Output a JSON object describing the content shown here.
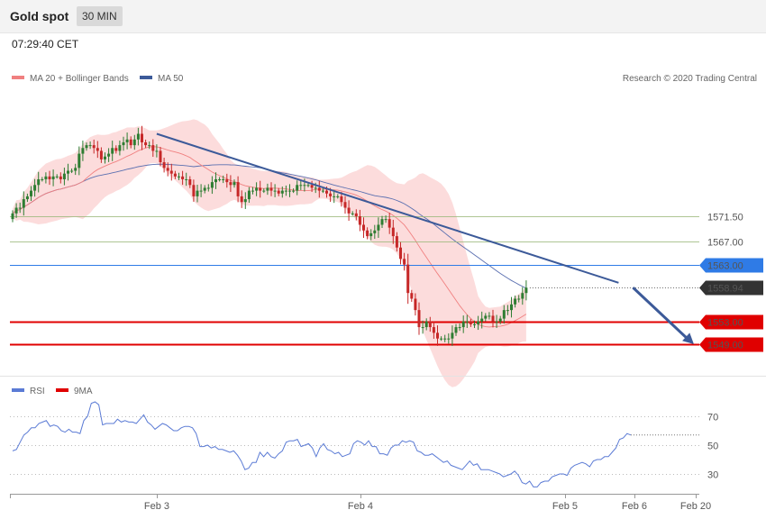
{
  "header": {
    "title": "Gold spot",
    "timeframe": "30 MIN"
  },
  "timestamp": "07:29:40 CET",
  "legend": {
    "ma20_bb": "MA 20 + Bollinger Bands",
    "ma50": "MA 50",
    "rsi": "RSI",
    "ma9": "9MA"
  },
  "credit": "Research © 2020 Trading Central",
  "colors": {
    "candle_up": "#2e7d32",
    "candle_down": "#c62828",
    "bollinger_fill": "#fbd0d0",
    "ma20": "#f08080",
    "ma50": "#5a6fb0",
    "trendline": "#3c5a99",
    "rsi": "#5b7bd5",
    "resistance_green": "#9ab87a",
    "level_blue": "#2f7be6",
    "level_red": "#e00000",
    "price_tag": "#333333"
  },
  "chart_data": [
    {
      "type": "candlestick",
      "title": "",
      "xlabel": "",
      "ylabel": "",
      "x_ticks": [
        "Feb 3",
        "Feb 4",
        "Feb 5",
        "Feb 6",
        "Feb 20"
      ],
      "ylim": [
        1544,
        1586
      ],
      "levels": [
        {
          "label": "1571.50",
          "value": 1571.5,
          "style": "green"
        },
        {
          "label": "1567.00",
          "value": 1567.0,
          "style": "green"
        },
        {
          "label": "1563.00",
          "value": 1563.0,
          "style": "blue"
        },
        {
          "label": "1558.94",
          "value": 1558.94,
          "style": "current"
        },
        {
          "label": "1553.00",
          "value": 1553.0,
          "style": "red"
        },
        {
          "label": "1549.00",
          "value": 1549.0,
          "style": "red"
        }
      ],
      "close": [
        1572,
        1573,
        1573,
        1574.5,
        1575,
        1576,
        1577,
        1578,
        1578,
        1578.5,
        1578,
        1578.5,
        1578.5,
        1578,
        1579,
        1579.5,
        1579.5,
        1580,
        1582.5,
        1583.5,
        1584,
        1584,
        1583.5,
        1583,
        1581.5,
        1582,
        1582.5,
        1583.5,
        1583,
        1584,
        1584.5,
        1585,
        1584,
        1585,
        1586,
        1584.5,
        1584,
        1584,
        1583,
        1583,
        1581,
        1580,
        1579.5,
        1579,
        1578.5,
        1578.5,
        1578,
        1578,
        1577,
        1575,
        1576,
        1576,
        1576.5,
        1576.5,
        1577.5,
        1578,
        1578,
        1578,
        1577.5,
        1577,
        1577.5,
        1575,
        1574,
        1574.5,
        1576,
        1576,
        1576.5,
        1576,
        1576,
        1576.5,
        1576,
        1576,
        1575.5,
        1576,
        1576,
        1576,
        1576,
        1577,
        1577,
        1577,
        1577,
        1576.5,
        1576.5,
        1576,
        1576,
        1575.5,
        1575,
        1575,
        1575,
        1574,
        1573,
        1572,
        1572,
        1571.5,
        1570,
        1569,
        1568,
        1568.5,
        1569,
        1570,
        1571,
        1571,
        1569.5,
        1568,
        1566,
        1564,
        1563,
        1558,
        1557,
        1555,
        1552,
        1552,
        1553,
        1552,
        1551,
        1550,
        1550,
        1550,
        1550,
        1551,
        1552,
        1552,
        1553,
        1553,
        1552.5,
        1552.5,
        1553,
        1553.5,
        1554,
        1554,
        1553,
        1553,
        1553.5,
        1555,
        1555,
        1556,
        1557,
        1557,
        1558,
        1558.94
      ],
      "series": [
        {
          "name": "MA 20 + Bollinger Bands"
        },
        {
          "name": "MA 50"
        }
      ],
      "trendline": {
        "from": {
          "bar": 39,
          "price": 1586
        },
        "to": {
          "bar": 164,
          "price": 1559.8
        }
      },
      "projection": {
        "from": {
          "bar": 165,
          "price": 1558.94
        },
        "to_price": 1549.0
      }
    },
    {
      "type": "line",
      "title": "",
      "series": [
        {
          "name": "RSI"
        },
        {
          "name": "9MA"
        }
      ],
      "ylim": [
        10,
        90
      ],
      "y_ticks": [
        {
          "value": 70,
          "label": "70"
        },
        {
          "value": 50,
          "label": "50"
        },
        {
          "value": 30,
          "label": "30"
        }
      ],
      "values": [
        46,
        47,
        52,
        57,
        59,
        62,
        62,
        65,
        66,
        67,
        63,
        64,
        63,
        60,
        59,
        61,
        59,
        59,
        58,
        67,
        70,
        79,
        80,
        78,
        64,
        65,
        65,
        65,
        68,
        66,
        67,
        66,
        66,
        65,
        68,
        71,
        66,
        64,
        61,
        63,
        65,
        64,
        62,
        60,
        60,
        62,
        63,
        63,
        62,
        58,
        49,
        49,
        50,
        48,
        49,
        47,
        47,
        46,
        45,
        46,
        43,
        39,
        33,
        34,
        38,
        38,
        45,
        42,
        45,
        42,
        41,
        44,
        46,
        52,
        53,
        53,
        54,
        49,
        50,
        51,
        48,
        42,
        48,
        51,
        47,
        46,
        44,
        45,
        42,
        43,
        44,
        51,
        53,
        52,
        50,
        53,
        49,
        49,
        44,
        44,
        43,
        48,
        50,
        50,
        53,
        52,
        53,
        52,
        46,
        45,
        43,
        43,
        44,
        42,
        40,
        38,
        39,
        36,
        35,
        34,
        33,
        36,
        39,
        36,
        37,
        33,
        33,
        33,
        32,
        31,
        30,
        28,
        29,
        30,
        32,
        29,
        24,
        23,
        25,
        21,
        21,
        24,
        25,
        25,
        28,
        29,
        30,
        30,
        29,
        34,
        36,
        37,
        38,
        37,
        35,
        39,
        40,
        40,
        42,
        42,
        45,
        48,
        54,
        55,
        58,
        57
      ]
    }
  ]
}
